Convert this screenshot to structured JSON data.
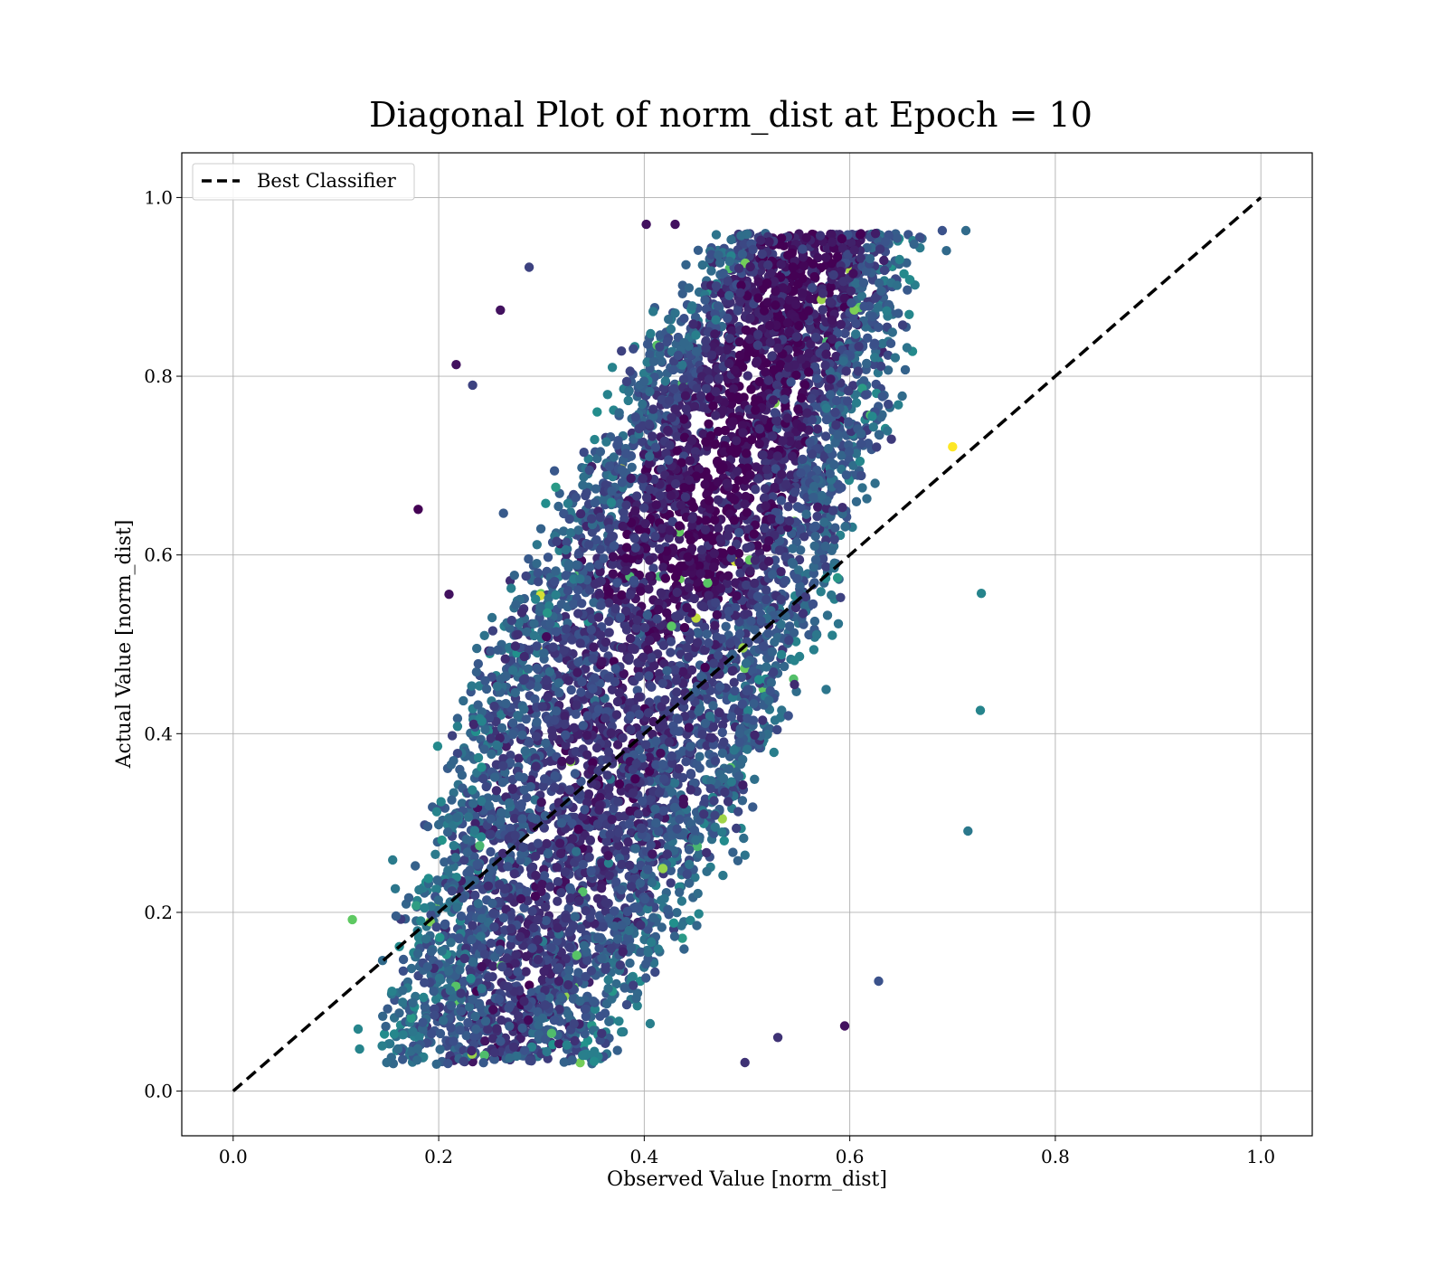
{
  "chart_data": {
    "type": "scatter",
    "title": "Diagonal Plot of norm_dist at Epoch = 10",
    "xlabel": "Observed Value [norm_dist]",
    "ylabel": "Actual Value [norm_dist]",
    "xlim": [
      -0.05,
      1.05
    ],
    "ylim": [
      -0.05,
      1.05
    ],
    "xticks": [
      "0.0",
      "0.2",
      "0.4",
      "0.6",
      "0.8",
      "1.0"
    ],
    "yticks": [
      "0.0",
      "0.2",
      "0.4",
      "0.6",
      "0.8",
      "1.0"
    ],
    "grid": true,
    "legend_position": "top-left",
    "colormap": [
      "#440154",
      "#3b528b",
      "#21918c",
      "#5ec962",
      "#fde725"
    ],
    "reference_line": {
      "label": "Best Classifier",
      "x": [
        0.0,
        1.0
      ],
      "y": [
        0.0,
        1.0
      ],
      "style": "dashed",
      "color": "#000000"
    },
    "scatter_description_points": [
      {
        "x": 0.116,
        "y": 0.192,
        "c": 0.75
      },
      {
        "x": 0.123,
        "y": 0.047,
        "c": 0.45
      },
      {
        "x": 0.18,
        "y": 0.651,
        "c": 0.0
      },
      {
        "x": 0.21,
        "y": 0.556,
        "c": 0.05
      },
      {
        "x": 0.217,
        "y": 0.813,
        "c": 0.05
      },
      {
        "x": 0.233,
        "y": 0.79,
        "c": 0.2
      },
      {
        "x": 0.26,
        "y": 0.874,
        "c": 0.05
      },
      {
        "x": 0.288,
        "y": 0.922,
        "c": 0.2
      },
      {
        "x": 0.402,
        "y": 0.97,
        "c": 0.05
      },
      {
        "x": 0.43,
        "y": 0.97,
        "c": 0.05
      },
      {
        "x": 0.498,
        "y": 0.032,
        "c": 0.15
      },
      {
        "x": 0.53,
        "y": 0.06,
        "c": 0.15
      },
      {
        "x": 0.595,
        "y": 0.073,
        "c": 0.05
      },
      {
        "x": 0.628,
        "y": 0.123,
        "c": 0.25
      },
      {
        "x": 0.7,
        "y": 0.721,
        "c": 1.0
      },
      {
        "x": 0.713,
        "y": 0.963,
        "c": 0.35
      },
      {
        "x": 0.715,
        "y": 0.291,
        "c": 0.4
      },
      {
        "x": 0.727,
        "y": 0.426,
        "c": 0.45
      },
      {
        "x": 0.728,
        "y": 0.557,
        "c": 0.45
      },
      {
        "x": 0.69,
        "y": 0.963,
        "c": 0.25
      }
    ]
  }
}
